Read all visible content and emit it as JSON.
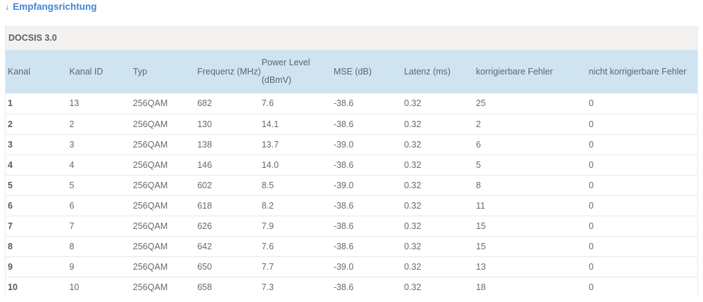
{
  "header": {
    "link_arrow": "↓",
    "link_label": "Empfangsrichtung"
  },
  "table": {
    "caption": "DOCSIS 3.0",
    "columns": [
      "Kanal",
      "Kanal ID",
      "Typ",
      "Frequenz (MHz)",
      "Power Level (dBmV)",
      "MSE (dB)",
      "Latenz (ms)",
      "korrigierbare Fehler",
      "nicht korrigierbare Fehler"
    ],
    "rows": [
      [
        "1",
        "13",
        "256QAM",
        "682",
        "7.6",
        "-38.6",
        "0.32",
        "25",
        "0"
      ],
      [
        "2",
        "2",
        "256QAM",
        "130",
        "14.1",
        "-38.6",
        "0.32",
        "2",
        "0"
      ],
      [
        "3",
        "3",
        "256QAM",
        "138",
        "13.7",
        "-39.0",
        "0.32",
        "6",
        "0"
      ],
      [
        "4",
        "4",
        "256QAM",
        "146",
        "14.0",
        "-38.6",
        "0.32",
        "5",
        "0"
      ],
      [
        "5",
        "5",
        "256QAM",
        "602",
        "8.5",
        "-39.0",
        "0.32",
        "8",
        "0"
      ],
      [
        "6",
        "6",
        "256QAM",
        "618",
        "8.2",
        "-38.6",
        "0.32",
        "11",
        "0"
      ],
      [
        "7",
        "7",
        "256QAM",
        "626",
        "7.9",
        "-38.6",
        "0.32",
        "15",
        "0"
      ],
      [
        "8",
        "8",
        "256QAM",
        "642",
        "7.6",
        "-38.6",
        "0.32",
        "15",
        "0"
      ],
      [
        "9",
        "9",
        "256QAM",
        "650",
        "7.7",
        "-39.0",
        "0.32",
        "13",
        "0"
      ],
      [
        "10",
        "10",
        "256QAM",
        "658",
        "7.3",
        "-38.6",
        "0.32",
        "18",
        "0"
      ]
    ]
  },
  "colors": {
    "link_blue": "#4184d9",
    "header_row_bg": "#cfe3f1",
    "caption_bg": "#f3f2f1",
    "row_border": "#e8e8e8",
    "body_text": "#626c74"
  }
}
